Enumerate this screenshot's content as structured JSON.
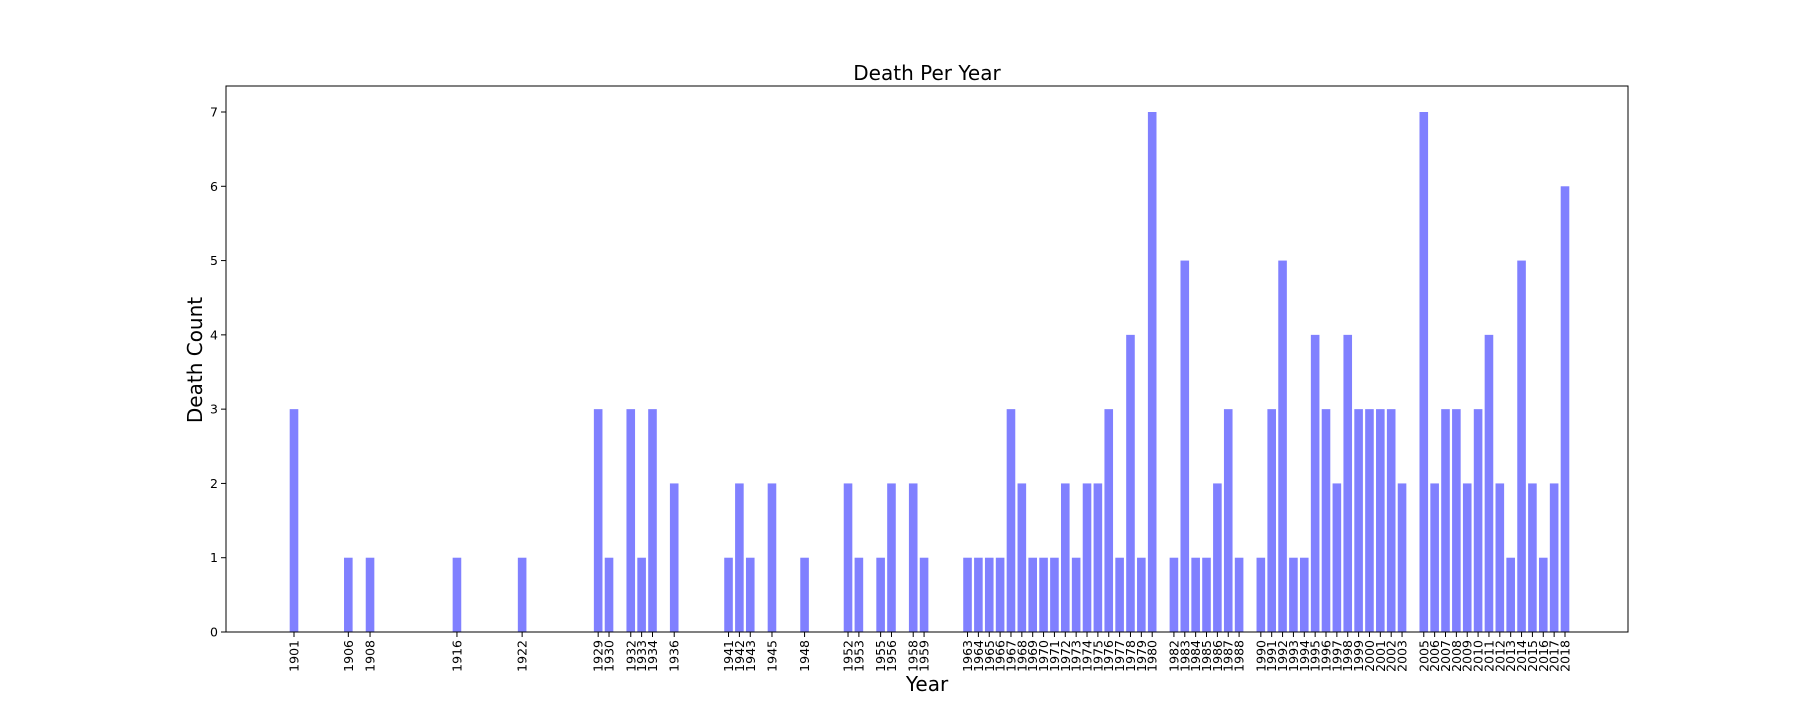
{
  "chart_data": {
    "type": "bar",
    "title": "Death Per Year",
    "xlabel": "Year",
    "ylabel": "Death Count",
    "ylim": [
      0,
      7.35
    ],
    "yticks": [
      0,
      1,
      2,
      3,
      4,
      5,
      6,
      7
    ],
    "x_axis": "linear year scale; tick labels rotated 90 degrees",
    "bar_color": "#8080ff",
    "grid": false,
    "legend": "none",
    "categories": [
      1901,
      1906,
      1908,
      1916,
      1922,
      1929,
      1930,
      1932,
      1933,
      1934,
      1936,
      1941,
      1942,
      1943,
      1945,
      1948,
      1952,
      1953,
      1955,
      1956,
      1958,
      1959,
      1963,
      1964,
      1965,
      1966,
      1967,
      1968,
      1969,
      1970,
      1971,
      1972,
      1973,
      1974,
      1975,
      1976,
      1977,
      1978,
      1979,
      1980,
      1982,
      1983,
      1984,
      1985,
      1986,
      1987,
      1988,
      1990,
      1991,
      1992,
      1993,
      1994,
      1995,
      1996,
      1997,
      1998,
      1999,
      2000,
      2001,
      2002,
      2003,
      2005,
      2006,
      2007,
      2008,
      2009,
      2010,
      2011,
      2012,
      2013,
      2014,
      2015,
      2016,
      2017,
      2018
    ],
    "values": [
      3,
      1,
      1,
      1,
      1,
      3,
      1,
      3,
      1,
      3,
      2,
      1,
      2,
      1,
      2,
      1,
      2,
      1,
      1,
      2,
      2,
      1,
      1,
      1,
      1,
      1,
      3,
      2,
      1,
      1,
      1,
      2,
      1,
      2,
      2,
      3,
      1,
      4,
      1,
      7,
      1,
      5,
      1,
      1,
      2,
      3,
      1,
      1,
      3,
      5,
      1,
      1,
      4,
      3,
      2,
      4,
      3,
      3,
      3,
      3,
      2,
      7,
      2,
      3,
      3,
      2,
      3,
      4,
      2,
      1,
      5,
      2,
      1,
      2,
      6
    ]
  }
}
